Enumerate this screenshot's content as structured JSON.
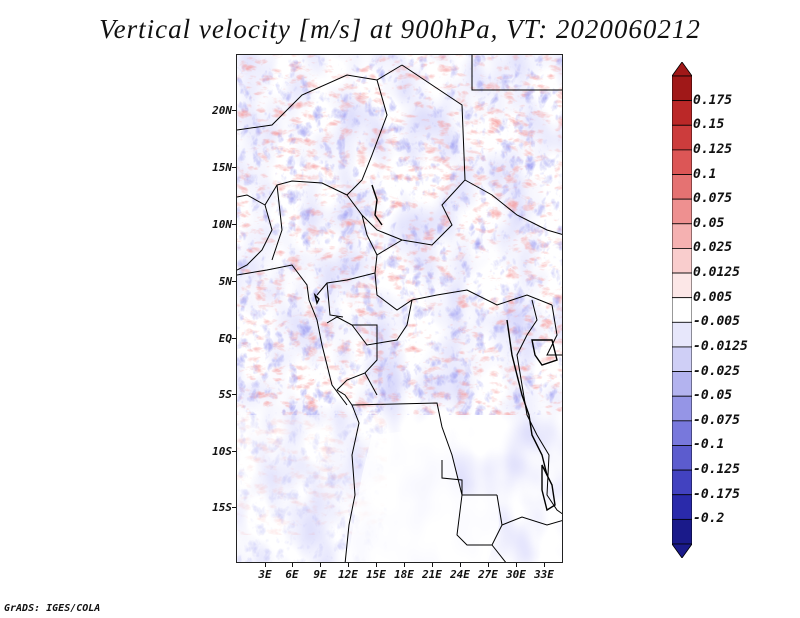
{
  "title": "Vertical velocity [m/s] at 900hPa, VT: 2020060212",
  "footer": "GrADS: IGES/COLA",
  "y_axis": {
    "labels": [
      "20N",
      "15N",
      "10N",
      "5N",
      "EQ",
      "5S",
      "10S",
      "15S"
    ]
  },
  "x_axis": {
    "labels": [
      "3E",
      "6E",
      "9E",
      "12E",
      "15E",
      "18E",
      "21E",
      "24E",
      "27E",
      "30E",
      "33E"
    ]
  },
  "colorbar": {
    "labels": [
      "0.175",
      "0.15",
      "0.125",
      "0.1",
      "0.075",
      "0.05",
      "0.025",
      "0.0125",
      "0.005",
      "-0.005",
      "-0.0125",
      "-0.025",
      "-0.05",
      "-0.075",
      "-0.1",
      "-0.125",
      "-0.175",
      "-0.2"
    ],
    "colors": [
      "#a01818",
      "#bb2828",
      "#cc3c3c",
      "#dc5656",
      "#e57272",
      "#ee9090",
      "#f5b1b1",
      "#f9cdcd",
      "#fce7e7",
      "#ffffff",
      "#e7e7fb",
      "#cfcff6",
      "#b3b3ef",
      "#9595e6",
      "#7878dc",
      "#5c5cce",
      "#4242c0",
      "#2a2aaa",
      "#1a1a8a"
    ]
  }
}
